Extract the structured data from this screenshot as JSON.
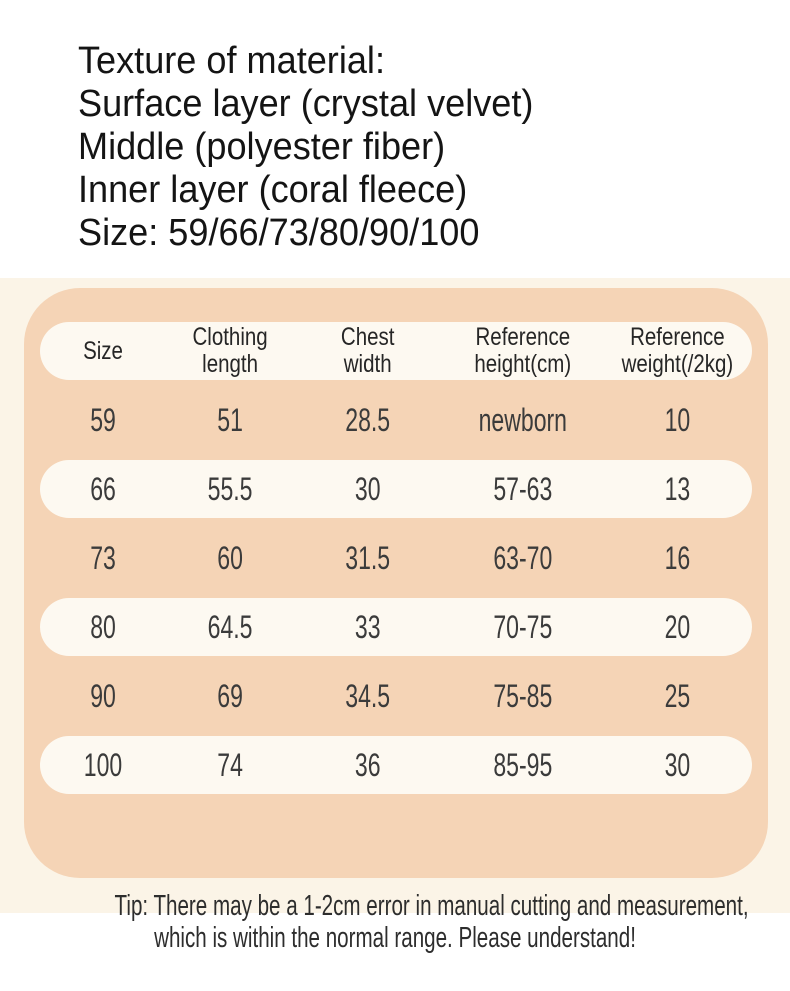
{
  "header": {
    "lines": [
      "Texture of material:",
      "Surface layer (crystal velvet)",
      "Middle (polyester fiber)",
      "Inner layer (coral fleece)",
      "Size: 59/66/73/80/90/100"
    ]
  },
  "size_chart": {
    "columns": [
      "Size",
      "Clothing\nlength",
      "Chest\nwidth",
      "Reference\nheight(cm)",
      "Reference\nweight(/2kg)"
    ],
    "rows": [
      [
        "59",
        "51",
        "28.5",
        "newborn",
        "10"
      ],
      [
        "66",
        "55.5",
        "30",
        "57-63",
        "13"
      ],
      [
        "73",
        "60",
        "31.5",
        "63-70",
        "16"
      ],
      [
        "80",
        "64.5",
        "33",
        "70-75",
        "20"
      ],
      [
        "90",
        "69",
        "34.5",
        "75-85",
        "25"
      ],
      [
        "100",
        "74",
        "36",
        "85-95",
        "30"
      ]
    ]
  },
  "tip": {
    "line1": "Tip: There may be a 1-2cm error in manual cutting and measurement,",
    "line2": "which is within the normal range. Please understand!"
  },
  "colors": {
    "card_peach": "#f5d4b6",
    "band_cream": "#fbf4e7",
    "pill_white": "#fdf9f1",
    "text_dark": "#141414"
  }
}
